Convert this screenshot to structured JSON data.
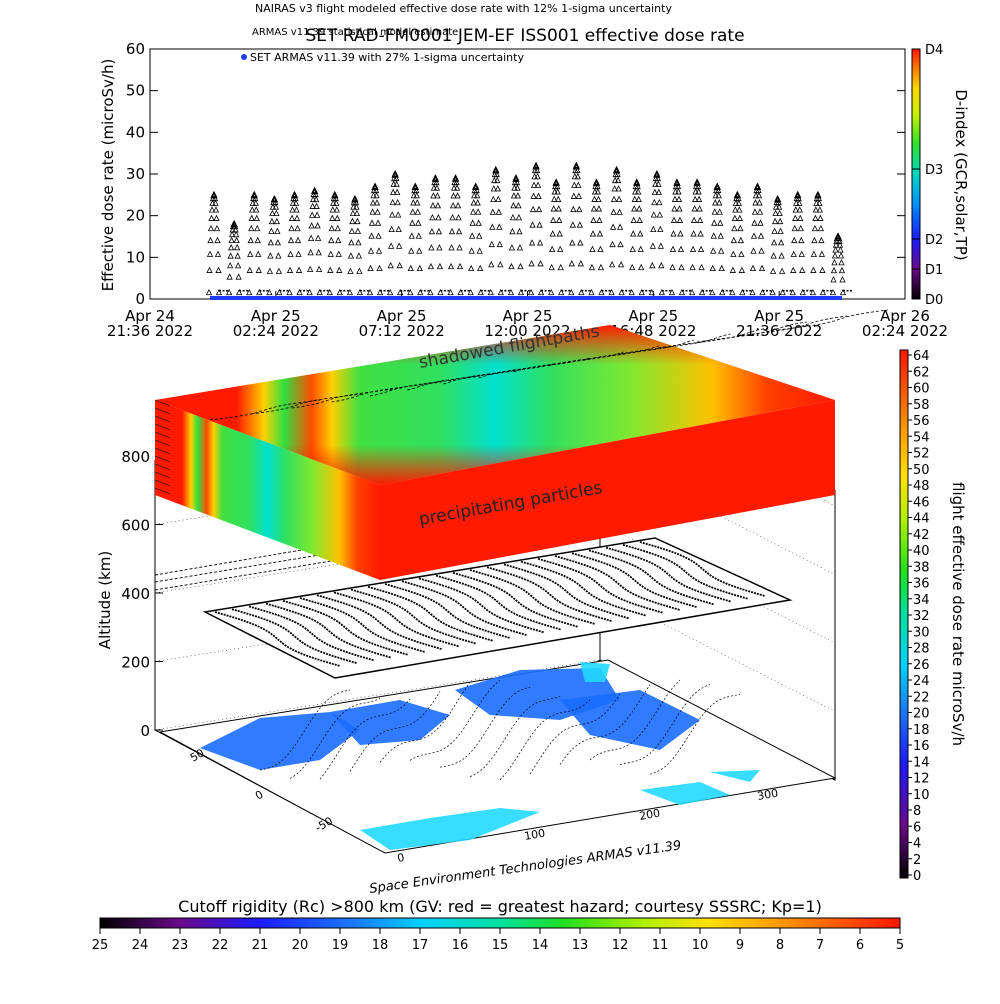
{
  "top_chart": {
    "legend_lines": [
      "NAIRAS v3 flight modeled effective dose rate with 12% 1-sigma uncertainty",
      "ARMAS v11.39 statistical model estimate",
      "SET ARMAS v11.39 with 27% 1-sigma uncertainty"
    ],
    "title": "SET RAD-FM0001 JEM-EF ISS001 effective dose rate",
    "ylabel": "Effective dose rate (microSv/h)",
    "yticks": [
      "0",
      "10",
      "20",
      "30",
      "40",
      "50",
      "60"
    ],
    "xticks": [
      {
        "date": "Apr 24",
        "time": "21:36 2022"
      },
      {
        "date": "Apr 25",
        "time": "02:24 2022"
      },
      {
        "date": "Apr 25",
        "time": "07:12 2022"
      },
      {
        "date": "Apr 25",
        "time": "12:00 2022"
      },
      {
        "date": "Apr 25",
        "time": "16:48 2022"
      },
      {
        "date": "Apr 25",
        "time": "21:36 2022"
      },
      {
        "date": "Apr 26",
        "time": "02:24 2022"
      }
    ],
    "dindex_label": "D-index (GCR,solar,TP)",
    "dindex_ticks": [
      "D4",
      "D3",
      "D2",
      "D1",
      "D0"
    ]
  },
  "chart_data": {
    "type": "scatter",
    "x_range": [
      "2022-04-24 21:36",
      "2022-04-26 02:24"
    ],
    "ylim": [
      0,
      60
    ],
    "series": [
      {
        "name": "NAIRAS v3 flight modeled effective dose rate with 12% 1-sigma uncertainty",
        "orbit_peaks": [
          25,
          18,
          25,
          24,
          25,
          26,
          25,
          24,
          27,
          30,
          27,
          29,
          29,
          27,
          31,
          29,
          32,
          28,
          32,
          28,
          31,
          28,
          30,
          28,
          28,
          27,
          25,
          27,
          24,
          25,
          25,
          15
        ]
      },
      {
        "name": "SET ARMAS v11.39 with 27% 1-sigma uncertainty",
        "values_range": [
          0,
          0.5
        ]
      }
    ]
  },
  "perspective": {
    "annotations": [
      "shadowed flightpaths",
      "precipitating particles"
    ],
    "ylabel": "Altitude (km)",
    "alt_ticks": [
      "0",
      "200",
      "400",
      "600",
      "800"
    ],
    "lat_ticks": [
      "50",
      "0",
      "-50"
    ],
    "lon_ticks": [
      "0",
      "100",
      "200",
      "300"
    ],
    "credit": "Space Environment Technologies ARMAS v11.39"
  },
  "right_colorbar": {
    "label": "flight effective dose rate microSv/h",
    "ticks": [
      "0",
      "2",
      "4",
      "6",
      "8",
      "10",
      "12",
      "14",
      "16",
      "18",
      "20",
      "22",
      "24",
      "26",
      "28",
      "30",
      "32",
      "34",
      "36",
      "38",
      "40",
      "42",
      "44",
      "46",
      "48",
      "50",
      "52",
      "54",
      "56",
      "58",
      "60",
      "62",
      "64"
    ]
  },
  "bottom_colorbar": {
    "label": "Cutoff rigidity (Rc) >800 km (GV: red = greatest hazard; courtesy SSSRC; Kp=1)",
    "ticks": [
      "25",
      "24",
      "23",
      "22",
      "21",
      "20",
      "19",
      "18",
      "17",
      "16",
      "15",
      "14",
      "13",
      "12",
      "11",
      "10",
      "9",
      "8",
      "7",
      "6",
      "5"
    ]
  },
  "colors": {
    "frame": "#000000",
    "armas_series": "#1e3cff",
    "hazard_red": "#ff1a00",
    "ocean_cyan": "#22d8ff",
    "land_blue": "#1a6dff"
  }
}
